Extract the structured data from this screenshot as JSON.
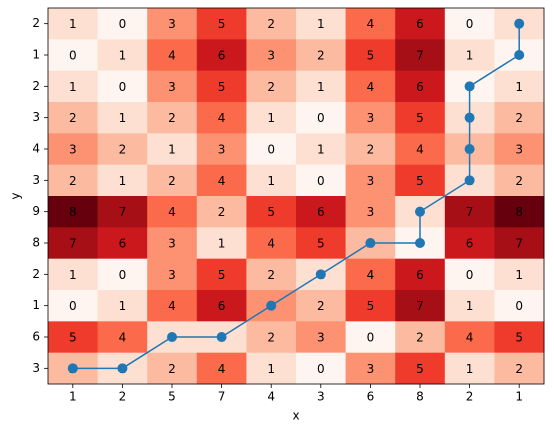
{
  "chart_data": {
    "type": "heatmap",
    "x_label": "x",
    "y_label": "y",
    "x_labels": [
      1,
      2,
      5,
      7,
      4,
      3,
      6,
      8,
      2,
      1
    ],
    "y_labels": [
      2,
      1,
      2,
      3,
      4,
      3,
      9,
      8,
      2,
      1,
      6,
      3
    ],
    "z": [
      [
        1,
        0,
        3,
        5,
        2,
        1,
        4,
        6,
        0,
        1
      ],
      [
        0,
        1,
        4,
        6,
        3,
        2,
        5,
        7,
        1,
        0
      ],
      [
        1,
        0,
        3,
        5,
        2,
        1,
        4,
        6,
        0,
        1
      ],
      [
        2,
        1,
        2,
        4,
        1,
        0,
        3,
        5,
        1,
        2
      ],
      [
        3,
        2,
        1,
        3,
        0,
        1,
        2,
        4,
        2,
        3
      ],
      [
        2,
        1,
        2,
        4,
        1,
        0,
        3,
        5,
        1,
        2
      ],
      [
        8,
        7,
        4,
        2,
        5,
        6,
        3,
        1,
        7,
        8
      ],
      [
        7,
        6,
        3,
        1,
        4,
        5,
        2,
        0,
        6,
        7
      ],
      [
        1,
        0,
        3,
        5,
        2,
        1,
        4,
        6,
        0,
        1
      ],
      [
        0,
        1,
        4,
        6,
        3,
        2,
        5,
        7,
        1,
        0
      ],
      [
        5,
        4,
        1,
        1,
        2,
        3,
        0,
        2,
        4,
        5
      ],
      [
        2,
        1,
        2,
        4,
        1,
        0,
        3,
        5,
        1,
        2
      ]
    ],
    "zlim": [
      0,
      8
    ],
    "cmap": "Reds",
    "path": {
      "color": "#1f77b4",
      "x": [
        0,
        1,
        2,
        3,
        4,
        5,
        6,
        7,
        7,
        8,
        8,
        8,
        8,
        9,
        9
      ],
      "y": [
        11,
        11,
        10,
        10,
        9,
        8,
        7,
        7,
        6,
        5,
        4,
        3,
        2,
        1,
        0
      ]
    }
  }
}
